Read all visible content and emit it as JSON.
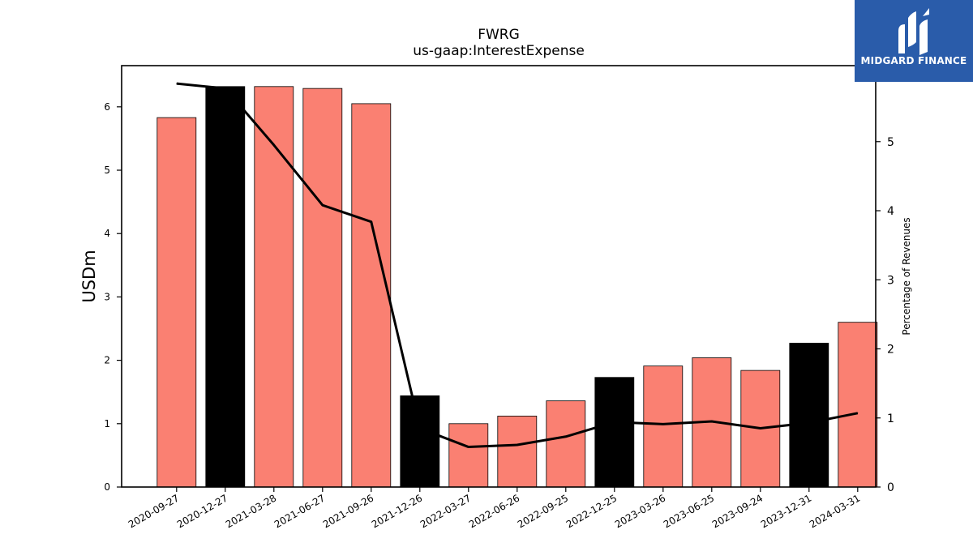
{
  "chart_data": {
    "type": "bar",
    "title": "FWRG",
    "subtitle": "us-gaap:InterestExpense",
    "ylabel": "USDm",
    "y2label": "Percentage of Revenues",
    "ylim": [
      0,
      6.65
    ],
    "y2lim": [
      0,
      6.1
    ],
    "yticks": [
      0,
      1,
      2,
      3,
      4,
      5,
      6
    ],
    "y2ticks": [
      0,
      1,
      2,
      3,
      4,
      5
    ],
    "categories": [
      "2020-09-27",
      "2020-12-27",
      "2021-03-28",
      "2021-06-27",
      "2021-09-26",
      "2021-12-26",
      "2022-03-27",
      "2022-06-26",
      "2022-09-25",
      "2022-12-25",
      "2023-03-26",
      "2023-06-25",
      "2023-09-24",
      "2023-12-31",
      "2024-03-31"
    ],
    "series": [
      {
        "type": "bar",
        "values": [
          5.83,
          6.32,
          6.32,
          6.29,
          6.05,
          1.44,
          1.0,
          1.12,
          1.36,
          1.73,
          1.91,
          2.04,
          1.84,
          2.27,
          2.6
        ],
        "colors": [
          "#fa8072",
          "#000000",
          "#fa8072",
          "#fa8072",
          "#fa8072",
          "#000000",
          "#fa8072",
          "#fa8072",
          "#fa8072",
          "#000000",
          "#fa8072",
          "#fa8072",
          "#fa8072",
          "#000000",
          "#fa8072"
        ]
      },
      {
        "type": "line",
        "axis": "right",
        "color": "#000000",
        "values": [
          5.84,
          5.77,
          4.95,
          4.08,
          3.84,
          0.85,
          0.58,
          0.61,
          0.73,
          0.94,
          0.91,
          0.95,
          0.85,
          0.93,
          1.07
        ]
      }
    ]
  },
  "logo": {
    "text": "MIDGARD FINANCE",
    "background": "#2a5caa"
  }
}
